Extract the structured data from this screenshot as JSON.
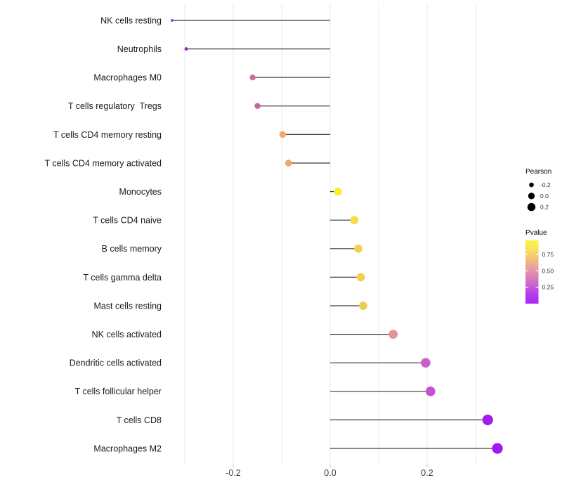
{
  "chart_data": {
    "type": "lollipop",
    "title": "",
    "xlabel": "",
    "ylabel": "",
    "x_tick_labels": [
      "-0.2",
      "0.0",
      "0.2"
    ],
    "x_ticks": [
      -0.2,
      0.0,
      0.2
    ],
    "xlim": [
      -0.35,
      0.37
    ],
    "gridlines_x": [
      -0.3,
      -0.2,
      -0.1,
      0.0,
      0.1,
      0.2,
      0.3
    ],
    "grid_on": true,
    "legend_position": "right",
    "points": [
      {
        "label": "NK cells resting",
        "pearson": -0.326,
        "color": "#9C2BE0"
      },
      {
        "label": "Neutrophils",
        "pearson": -0.297,
        "color": "#A21FE6"
      },
      {
        "label": "Macrophages M0",
        "pearson": -0.16,
        "color": "#D1689E"
      },
      {
        "label": "T cells regulatory  Tregs",
        "pearson": -0.15,
        "color": "#CE63A3"
      },
      {
        "label": "T cells CD4 memory resting",
        "pearson": -0.098,
        "color": "#F0AB72"
      },
      {
        "label": "T cells CD4 memory activated",
        "pearson": -0.086,
        "color": "#EFA76C"
      },
      {
        "label": "Monocytes",
        "pearson": 0.016,
        "color": "#F8EF25"
      },
      {
        "label": "T cells CD4 naive",
        "pearson": 0.05,
        "color": "#F4DC4B"
      },
      {
        "label": "B cells memory",
        "pearson": 0.058,
        "color": "#F1D353"
      },
      {
        "label": "T cells gamma delta",
        "pearson": 0.063,
        "color": "#EFD04F"
      },
      {
        "label": "Mast cells resting",
        "pearson": 0.068,
        "color": "#EECD55"
      },
      {
        "label": "NK cells activated",
        "pearson": 0.13,
        "color": "#E59295"
      },
      {
        "label": "Dendritic cells activated",
        "pearson": 0.197,
        "color": "#C661CC"
      },
      {
        "label": "T cells follicular helper",
        "pearson": 0.207,
        "color": "#C353D3"
      },
      {
        "label": "T cells CD8",
        "pearson": 0.325,
        "color": "#A21CF0"
      },
      {
        "label": "Macrophages M2",
        "pearson": 0.345,
        "color": "#A318F2"
      }
    ],
    "legend": {
      "pearson": {
        "title": "Pearson",
        "dot_color": "#000000",
        "entries": [
          {
            "label": "-0.2",
            "r": 3.3
          },
          {
            "label": "0.0",
            "r": 4.7
          },
          {
            "label": "0.2",
            "r": 5.7
          }
        ]
      },
      "pvalue": {
        "title": "Pvalue",
        "tick_labels": [
          "0.75",
          "0.50",
          "0.25"
        ],
        "gradient": [
          "#FCF441",
          "#F9E25A",
          "#F3C276",
          "#E8A0A0",
          "#DC82B8",
          "#CB60D6",
          "#B43BEA",
          "#A727F2"
        ]
      }
    },
    "style": {
      "background": "#FFFFFF",
      "grid_color": "#EBEBEB",
      "stem_color": "#3A3A3A",
      "axis_tick_color": "#C9C9C9",
      "axis_text_color": "#3C3C3C",
      "category_text_color": "#1A1A1A",
      "legend_text_color": "#333333"
    }
  }
}
